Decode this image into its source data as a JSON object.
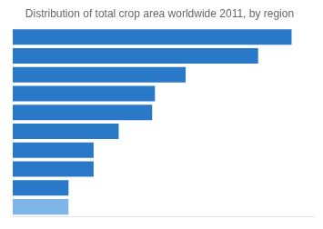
{
  "chart_data": {
    "type": "bar",
    "orientation": "horizontal",
    "title": "Distribution of total crop area worldwide 2011, by region",
    "categories": [
      null,
      null,
      null,
      null,
      null,
      null,
      null,
      null,
      null,
      null
    ],
    "values": [
      100,
      88,
      62,
      51,
      50,
      38,
      29,
      29,
      20,
      20
    ],
    "colors": [
      "#2979C8",
      "#2979C8",
      "#2979C8",
      "#2979C8",
      "#2979C8",
      "#2979C8",
      "#2979C8",
      "#2979C8",
      "#2979C8",
      "#7EB6E8"
    ],
    "xlim": [
      0,
      108
    ],
    "grid": false,
    "tick_labels": false
  }
}
